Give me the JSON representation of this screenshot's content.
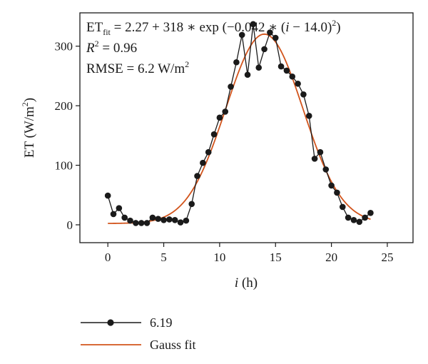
{
  "chart_data": {
    "type": "line",
    "xlabel": {
      "italic": "i",
      "rest": " (h)"
    },
    "ylabel": {
      "pre": "ET (W/m",
      "sup": "2",
      "post": ")"
    },
    "xlim": [
      -2.5,
      27.3
    ],
    "ylim": [
      -30,
      356
    ],
    "xticks": [
      "0",
      "5",
      "10",
      "15",
      "20",
      "25"
    ],
    "yticks": [
      "0",
      "100",
      "200",
      "300"
    ],
    "annotation": {
      "line1_et": "ET",
      "line1_sub": "fit",
      "line1_rest": " = 2.27 + 318 ∗ exp (−0.042 ∗ (",
      "line1_i": "i",
      "line1_tail": " − 14.0)",
      "line1_sup": "2",
      "line1_close": ")",
      "line2_r": "R",
      "line2_sup": "2",
      "line2_rest": " = 0.96",
      "line3_pre": "RMSE = 6.2 W/m",
      "line3_sup": "2"
    },
    "fit_params": {
      "a": 2.27,
      "b": 318,
      "c": 0.042,
      "mu": 14.0
    },
    "series": [
      {
        "name": "6.19",
        "color": "#1a1a1a",
        "marker": "circle",
        "x": [
          0,
          0.5,
          1,
          1.5,
          2,
          2.5,
          3,
          3.5,
          4,
          4.5,
          5,
          5.5,
          6,
          6.5,
          7,
          7.5,
          8,
          8.5,
          9,
          9.5,
          10,
          10.5,
          11,
          11.5,
          12,
          12.5,
          13,
          13.5,
          14,
          14.5,
          15,
          15.5,
          16,
          16.5,
          17,
          17.5,
          18,
          18.5,
          19,
          19.5,
          20,
          20.5,
          21,
          21.5,
          22,
          22.5,
          23,
          23.5
        ],
        "y": [
          49,
          18,
          28,
          12,
          7,
          3,
          3,
          3,
          12,
          10,
          8,
          9,
          8,
          4,
          7,
          35,
          82,
          104,
          122,
          152,
          180,
          190,
          232,
          273,
          319,
          252,
          337,
          264,
          295,
          323,
          314,
          266,
          259,
          249,
          237,
          219,
          183,
          111,
          122,
          93,
          66,
          54,
          30,
          12,
          8,
          5,
          12,
          20
        ]
      },
      {
        "name": "Gauss fit",
        "color": "#d2541c",
        "marker": "none"
      }
    ]
  }
}
